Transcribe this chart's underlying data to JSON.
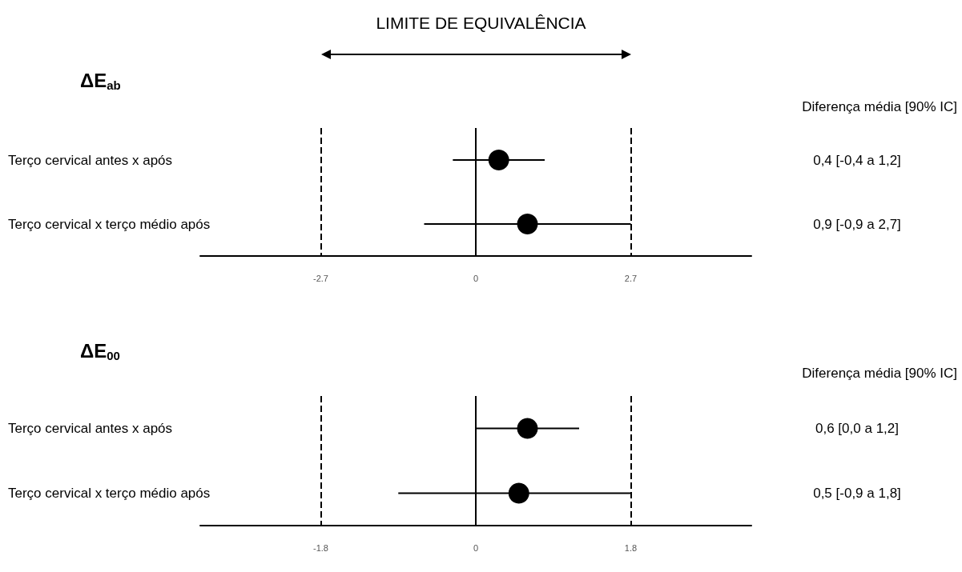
{
  "chart_data": [
    {
      "type": "scatter",
      "orientation": "horizontal",
      "title": "ΔE$_{ab}$",
      "annotations": [
        "LIMITE DE EQUIVALÊNCIA",
        "Diferença média [90% IC]"
      ],
      "categories": [
        "Terço cervical antes x após",
        "Terço cervical x terço médio após"
      ],
      "values": [
        0.4,
        0.9
      ],
      "errors": [
        [
          -0.4,
          1.2
        ],
        [
          -0.9,
          2.7
        ]
      ],
      "value_labels": [
        "0,4 [-0,4 a 1,2]",
        "0,9 [-0,9 a 2,7]"
      ],
      "color": "#000000",
      "marker": "circle",
      "xlim": [
        -4.8,
        4.8
      ],
      "xticks": [
        -2.7,
        0,
        2.7
      ],
      "grid": false,
      "ref_lines": [
        {
          "axis": "x",
          "value": -2.7,
          "line_style": "dashed",
          "color": "#000000"
        },
        {
          "axis": "x",
          "value": 0,
          "line_style": "solid",
          "color": "#000000"
        },
        {
          "axis": "x",
          "value": 2.7,
          "line_style": "dashed",
          "color": "#000000"
        }
      ]
    },
    {
      "type": "scatter",
      "orientation": "horizontal",
      "title": "ΔE$_{00}$",
      "annotations": [
        "Diferença média [90% IC]"
      ],
      "categories": [
        "Terço cervical antes x após",
        "Terço cervical x terço médio após"
      ],
      "values": [
        0.6,
        0.5
      ],
      "errors": [
        [
          0.0,
          1.2
        ],
        [
          -0.9,
          1.8
        ]
      ],
      "value_labels": [
        "0,6 [0,0 a 1,2]",
        "0,5 [-0,9 a 1,8]"
      ],
      "color": "#000000",
      "marker": "circle",
      "xlim": [
        -3.2,
        3.2
      ],
      "xticks": [
        -1.8,
        0,
        1.8
      ],
      "grid": false,
      "ref_lines": [
        {
          "axis": "x",
          "value": -1.8,
          "line_style": "dashed",
          "color": "#000000"
        },
        {
          "axis": "x",
          "value": 0,
          "line_style": "solid",
          "color": "#000000"
        },
        {
          "axis": "x",
          "value": 1.8,
          "line_style": "dashed",
          "color": "#000000"
        }
      ]
    }
  ]
}
